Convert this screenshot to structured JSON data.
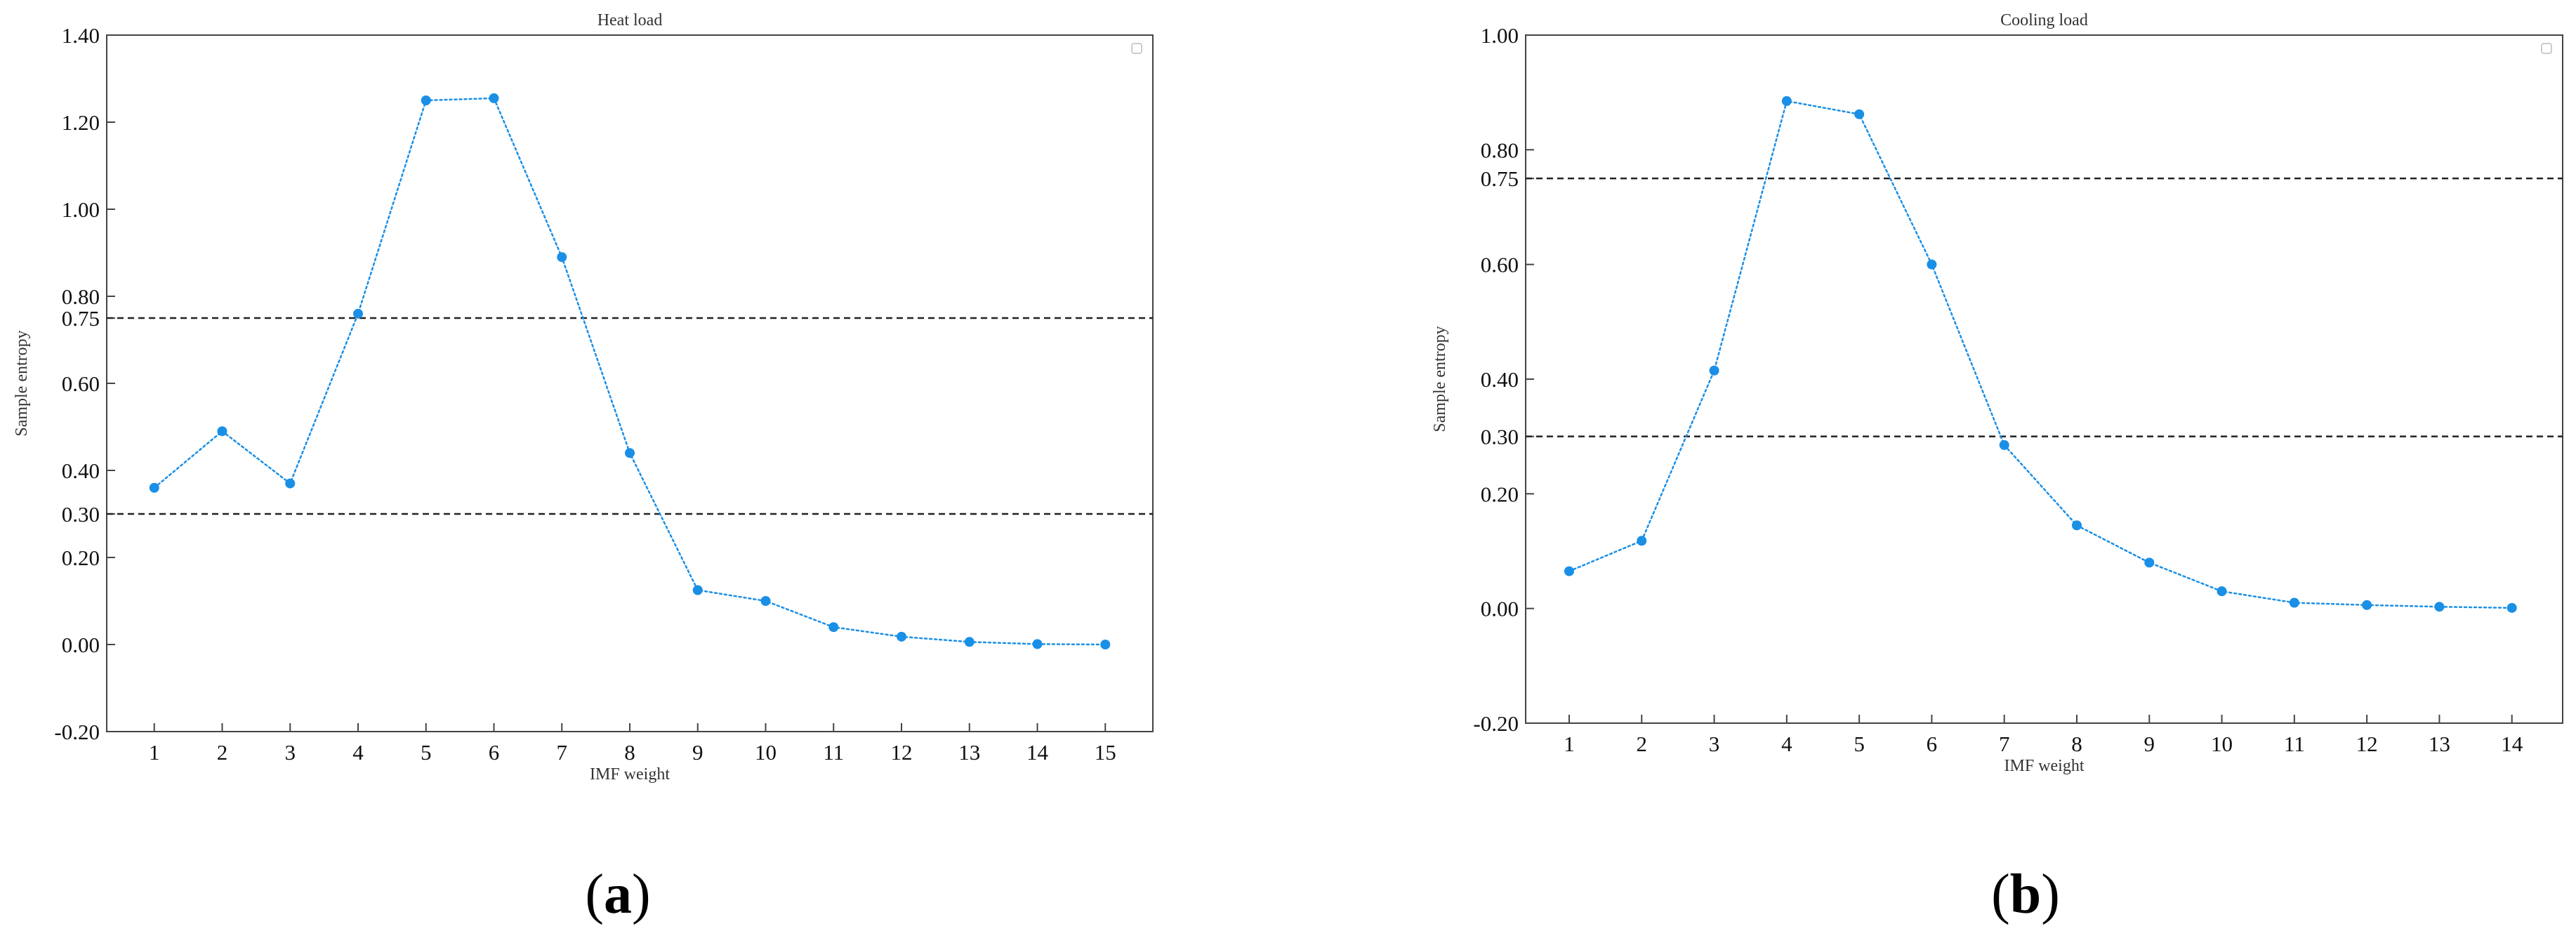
{
  "chart_data": [
    {
      "type": "line",
      "title": "Heat load",
      "xlabel": "IMF weight",
      "ylabel": "Sample entropy",
      "panel_label": "a",
      "x": [
        1,
        2,
        3,
        4,
        5,
        6,
        7,
        8,
        9,
        10,
        11,
        12,
        13,
        14,
        15
      ],
      "series": [
        {
          "name": "",
          "values": [
            0.36,
            0.49,
            0.37,
            0.76,
            1.25,
            1.255,
            0.89,
            0.44,
            0.125,
            0.1,
            0.04,
            0.018,
            0.006,
            0.001,
            0.0
          ]
        }
      ],
      "reference_lines": [
        0.75,
        0.3
      ],
      "yticks": [
        -0.2,
        0.0,
        0.2,
        0.3,
        0.4,
        0.6,
        0.75,
        0.8,
        1.0,
        1.2,
        1.4
      ],
      "ytick_labels": [
        "-0.20",
        "0.00",
        "0.20",
        "0.30",
        "0.40",
        "0.60",
        "0.75",
        "0.80",
        "1.00",
        "1.20",
        "1.40"
      ],
      "xlim": [
        0.3,
        15.7
      ],
      "ylim": [
        -0.2,
        1.4
      ],
      "grid": false,
      "legend": "empty-box-top-right",
      "line_style": "dotted",
      "marker": "circle",
      "color": "#1a8fe6",
      "reference_line_color": "#222222"
    },
    {
      "type": "line",
      "title": "Cooling load",
      "xlabel": "IMF weight",
      "ylabel": "Sample entropy",
      "panel_label": "b",
      "x": [
        1,
        2,
        3,
        4,
        5,
        6,
        7,
        8,
        9,
        10,
        11,
        12,
        13,
        14
      ],
      "series": [
        {
          "name": "",
          "values": [
            0.065,
            0.118,
            0.415,
            0.885,
            0.862,
            0.6,
            0.285,
            0.145,
            0.08,
            0.03,
            0.01,
            0.006,
            0.003,
            0.001
          ]
        }
      ],
      "reference_lines": [
        0.75,
        0.3
      ],
      "yticks": [
        -0.2,
        0.0,
        0.2,
        0.3,
        0.4,
        0.6,
        0.75,
        0.8,
        1.0
      ],
      "ytick_labels": [
        "-0.20",
        "0.00",
        "0.20",
        "0.30",
        "0.40",
        "0.60",
        "0.75",
        "0.80",
        "1.00"
      ],
      "xlim": [
        0.4,
        14.7
      ],
      "ylim": [
        -0.2,
        1.0
      ],
      "grid": false,
      "legend": "empty-box-top-right",
      "line_style": "dotted",
      "marker": "circle",
      "color": "#1a8fe6",
      "reference_line_color": "#222222"
    }
  ]
}
